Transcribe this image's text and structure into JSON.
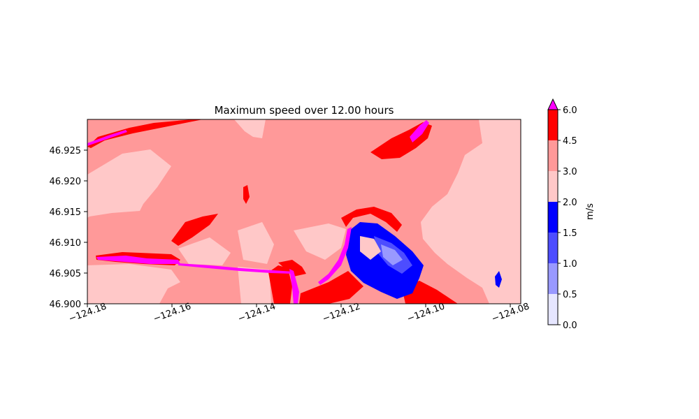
{
  "chart_data": {
    "type": "heatmap",
    "title": "Maximum speed over 12.00 hours",
    "xlabel": "",
    "ylabel": "",
    "xlim": [
      -124.18,
      -124.078
    ],
    "ylim": [
      46.9,
      46.93
    ],
    "x_ticks": [
      "−124.18",
      "−124.16",
      "−124.14",
      "−124.12",
      "−124.10",
      "−124.08"
    ],
    "y_ticks": [
      "46.900",
      "46.905",
      "46.910",
      "46.915",
      "46.920",
      "46.925"
    ],
    "colorbar": {
      "label": "m/s",
      "extend": "max",
      "levels": [
        0.0,
        0.5,
        1.0,
        1.5,
        2.0,
        3.0,
        4.5,
        6.0
      ],
      "tick_labels": [
        "0.0",
        "0.5",
        "1.0",
        "1.5",
        "2.0",
        "3.0",
        "4.5",
        "6.0"
      ],
      "colors": [
        "#e6e6ff",
        "#9999ff",
        "#4d4dff",
        "#0000ff",
        "#ffc8c8",
        "#ff9999",
        "#ff0000"
      ],
      "over_color": "#ff00ff"
    }
  }
}
